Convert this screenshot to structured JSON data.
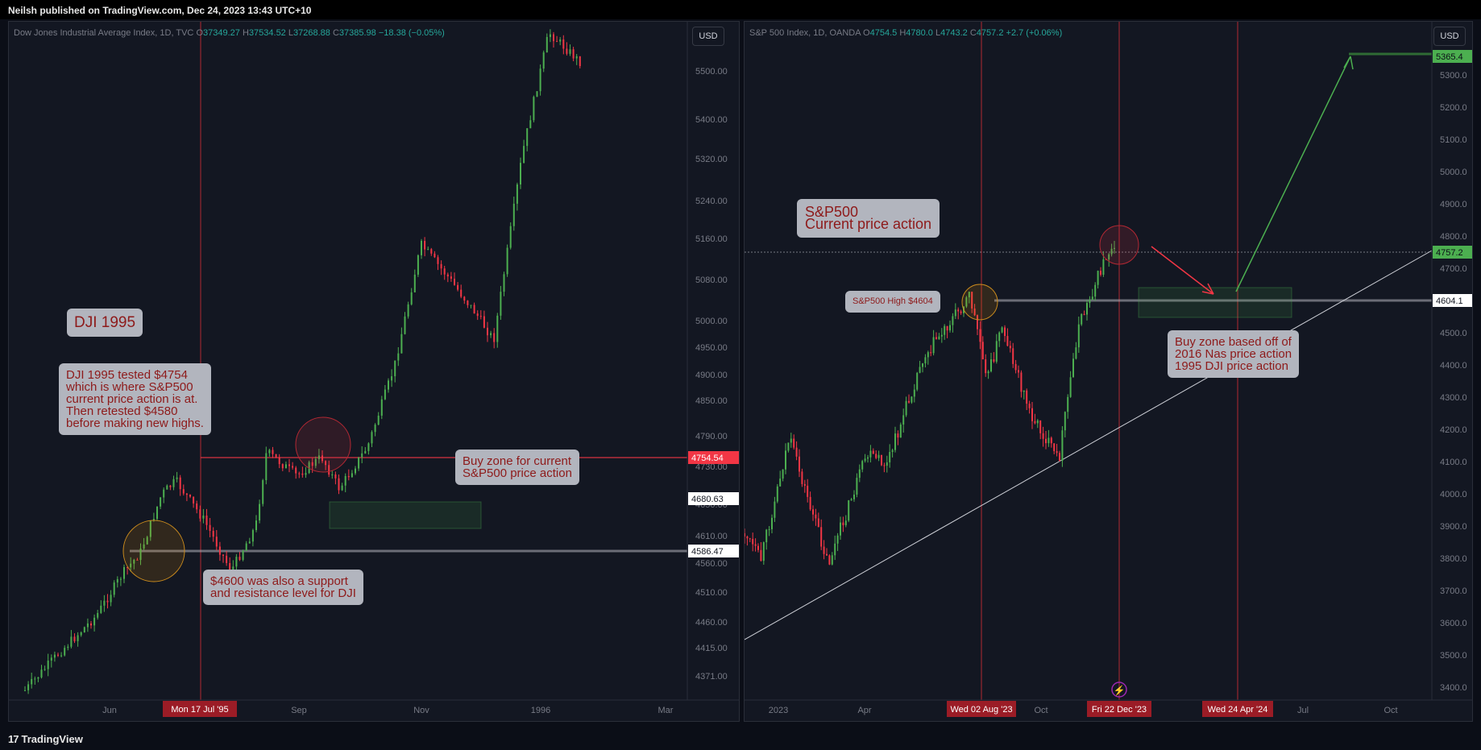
{
  "header": {
    "text": "Neilsh published on TradingView.com, Dec 24, 2023 13:43 UTC+10"
  },
  "footer": {
    "brand": "TradingView",
    "logo": "17"
  },
  "left": {
    "legend": {
      "name": "Dow Jones Industrial Average Index, 1D, TVC",
      "o_label": "O",
      "o": "37349.27",
      "h_label": "H",
      "h": "37534.52",
      "l_label": "L",
      "l": "37268.88",
      "c_label": "C",
      "c": "37385.98",
      "chg": "−18.38 (−0.05%)"
    },
    "currency": "USD",
    "yticks": [
      "5500.00",
      "5400.00",
      "5320.00",
      "5240.00",
      "5160.00",
      "5080.00",
      "5000.00",
      "4950.00",
      "4900.00",
      "4850.00",
      "4790.00",
      "4730.00",
      "4650.00",
      "4610.00",
      "4560.00",
      "4510.00",
      "4460.00",
      "4415.00",
      "4371.00"
    ],
    "price_labels": [
      {
        "text": "4754.54",
        "bg": "#f23645",
        "fg": "#ffffff"
      },
      {
        "text": "4680.63",
        "bg": "#ffffff",
        "fg": "#131722"
      },
      {
        "text": "4586.47",
        "bg": "#ffffff",
        "fg": "#131722"
      }
    ],
    "xticks": [
      "Jun",
      "Sep",
      "Nov",
      "1996",
      "Mar"
    ],
    "date_badge": "Mon 17 Jul '95",
    "notes": {
      "dji1995": "DJI 1995",
      "tested": "DJI 1995 tested $4754\nwhich is where S&P500\ncurrent price action is at.\nThen retested $4580\nbefore making new highs.",
      "support": "$4600 was also a support\nand resistance level for DJI",
      "buyzone": "Buy zone for current\nS&P500 price action"
    }
  },
  "right": {
    "legend": {
      "name": "S&P 500 Index, 1D, OANDA",
      "o_label": "O",
      "o": "4754.5",
      "h_label": "H",
      "h": "4780.0",
      "l_label": "L",
      "l": "4743.2",
      "c_label": "C",
      "c": "4757.2",
      "chg": "+2.7 (+0.06%)"
    },
    "currency": "USD",
    "yticks": [
      "5300.0",
      "5200.0",
      "5100.0",
      "5000.0",
      "4900.0",
      "4800.0",
      "4700.0",
      "4500.0",
      "4400.0",
      "4300.0",
      "4200.0",
      "4100.0",
      "4000.0",
      "3900.0",
      "3800.0",
      "3700.0",
      "3600.0",
      "3500.0",
      "3400.0"
    ],
    "price_labels": [
      {
        "text": "5365.4",
        "bg": "#4caf50",
        "fg": "#0b0e17"
      },
      {
        "text": "4757.2",
        "bg": "#4caf50",
        "fg": "#0b0e17"
      },
      {
        "text": "4604.1",
        "bg": "#ffffff",
        "fg": "#131722"
      }
    ],
    "xticks": [
      "2023",
      "Apr",
      "Oct",
      "Jul",
      "Oct"
    ],
    "date_badges": [
      "Wed 02 Aug '23",
      "Fri 22 Dec '23",
      "Wed 24 Apr '24"
    ],
    "notes": {
      "current": "S&P500\nCurrent price action",
      "high": "S&P500 High $4604",
      "buyzone": "Buy zone based off of\n2016 Nas price action\n1995 DJI price action"
    }
  },
  "colors": {
    "up": "#4caf50",
    "down": "#f23645",
    "bg": "#131722",
    "note_bg": "#b2b5be",
    "note_text": "#8e1a1a",
    "axis_text": "#787b86"
  },
  "chart_data": [
    {
      "type": "candlestick",
      "title": "Dow Jones Industrial Average Index, 1D, TVC",
      "x_range": [
        "1995-05",
        "1996-03"
      ],
      "ylim": [
        4340,
        5600
      ],
      "path_points": [
        {
          "x": "1995-05-01",
          "y": 4340
        },
        {
          "x": "1995-05-20",
          "y": 4410
        },
        {
          "x": "1995-06-10",
          "y": 4480
        },
        {
          "x": "1995-06-25",
          "y": 4560
        },
        {
          "x": "1995-07-05",
          "y": 4600
        },
        {
          "x": "1995-07-17",
          "y": 4710
        },
        {
          "x": "1995-07-25",
          "y": 4735
        },
        {
          "x": "1995-08-10",
          "y": 4660
        },
        {
          "x": "1995-08-25",
          "y": 4565
        },
        {
          "x": "1995-09-08",
          "y": 4650
        },
        {
          "x": "1995-09-14",
          "y": 4790
        },
        {
          "x": "1995-10-01",
          "y": 4745
        },
        {
          "x": "1995-10-15",
          "y": 4780
        },
        {
          "x": "1995-10-25",
          "y": 4720
        },
        {
          "x": "1995-11-10",
          "y": 4800
        },
        {
          "x": "1995-11-25",
          "y": 4950
        },
        {
          "x": "1995-12-10",
          "y": 5180
        },
        {
          "x": "1995-12-25",
          "y": 5120
        },
        {
          "x": "1996-01-10",
          "y": 5050
        },
        {
          "x": "1996-01-20",
          "y": 5000
        },
        {
          "x": "1996-02-05",
          "y": 5350
        },
        {
          "x": "1996-02-20",
          "y": 5580
        },
        {
          "x": "1996-03-10",
          "y": 5520
        }
      ],
      "horizontal_levels": [
        4754.54,
        4586.47
      ],
      "buy_zone": [
        4650,
        4690
      ],
      "axis_labels": {
        "current": 4754.54,
        "levels": [
          4680.63,
          4586.47
        ]
      }
    },
    {
      "type": "candlestick",
      "title": "S&P 500 Index, 1D, OANDA",
      "x_range": [
        "2022-12",
        "2024-10"
      ],
      "ylim": [
        3380,
        5400
      ],
      "path_points": [
        {
          "x": "2022-12-20",
          "y": 3900
        },
        {
          "x": "2023-01-05",
          "y": 3820
        },
        {
          "x": "2023-02-02",
          "y": 4180
        },
        {
          "x": "2023-03-13",
          "y": 3810
        },
        {
          "x": "2023-04-20",
          "y": 4130
        },
        {
          "x": "2023-05-10",
          "y": 4100
        },
        {
          "x": "2023-06-15",
          "y": 4420
        },
        {
          "x": "2023-07-31",
          "y": 4600
        },
        {
          "x": "2023-08-18",
          "y": 4360
        },
        {
          "x": "2023-09-01",
          "y": 4510
        },
        {
          "x": "2023-09-28",
          "y": 4260
        },
        {
          "x": "2023-10-27",
          "y": 4110
        },
        {
          "x": "2023-11-15",
          "y": 4500
        },
        {
          "x": "2023-12-14",
          "y": 4720
        },
        {
          "x": "2023-12-22",
          "y": 4757
        }
      ],
      "horizontal_levels": [
        4604.1,
        4757.2
      ],
      "target": 5365.4,
      "buy_zone": [
        4560,
        4650
      ]
    }
  ]
}
